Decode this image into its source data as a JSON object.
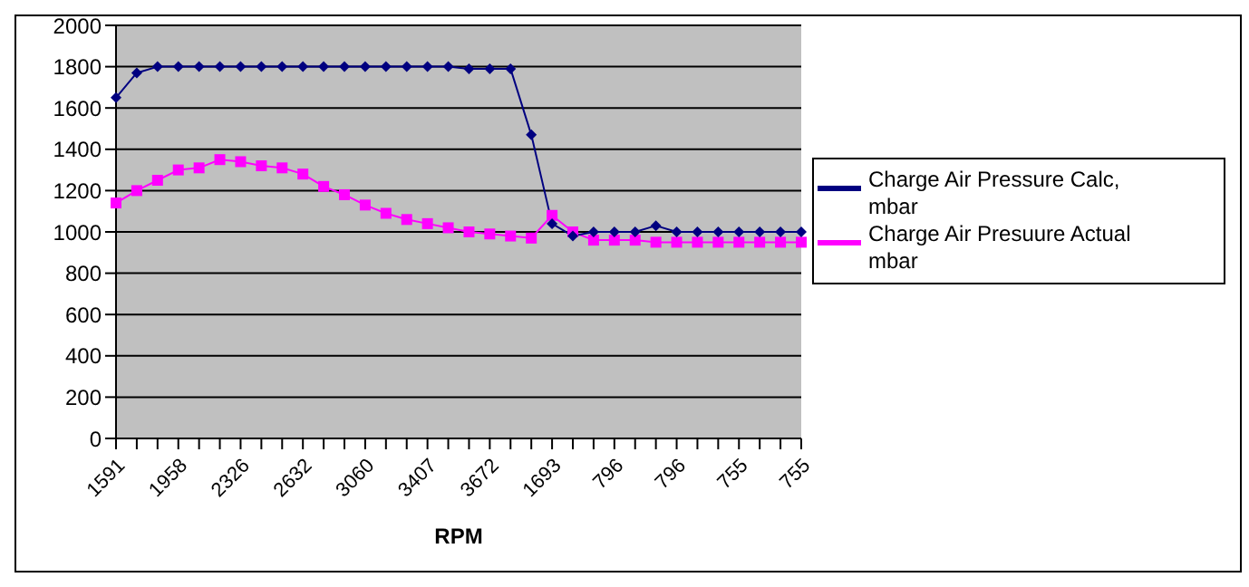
{
  "chart_data": {
    "type": "line",
    "xlabel": "RPM",
    "categories": [
      "1591",
      null,
      null,
      "1958",
      null,
      null,
      "2326",
      null,
      null,
      "2632",
      null,
      null,
      "3060",
      null,
      null,
      "3407",
      null,
      null,
      "3672",
      null,
      null,
      "1693",
      null,
      null,
      "796",
      null,
      null,
      "796",
      null,
      null,
      "755",
      null,
      null,
      "755"
    ],
    "series": [
      {
        "name": "Charge Air Pressure Calc, mbar",
        "color": "#000080",
        "marker": "diamond",
        "values": [
          1650,
          1770,
          1800,
          1800,
          1800,
          1800,
          1800,
          1800,
          1800,
          1800,
          1800,
          1800,
          1800,
          1800,
          1800,
          1800,
          1800,
          1790,
          1790,
          1790,
          1470,
          1040,
          980,
          1000,
          1000,
          1000,
          1030,
          1000,
          1000,
          1000,
          1000,
          1000,
          1000,
          1000
        ]
      },
      {
        "name": "Charge Air Presuure Actual mbar",
        "color": "#ff00ff",
        "marker": "square",
        "values": [
          1140,
          1200,
          1250,
          1300,
          1310,
          1350,
          1340,
          1320,
          1310,
          1280,
          1220,
          1180,
          1130,
          1090,
          1060,
          1040,
          1020,
          1000,
          990,
          980,
          970,
          1080,
          1000,
          960,
          960,
          960,
          950,
          950,
          950,
          950,
          950,
          950,
          950,
          950
        ]
      }
    ],
    "ylim": [
      0,
      2000
    ],
    "yticks": [
      0,
      200,
      400,
      600,
      800,
      1000,
      1200,
      1400,
      1600,
      1800,
      2000
    ],
    "grid": "y",
    "legend": "right"
  }
}
